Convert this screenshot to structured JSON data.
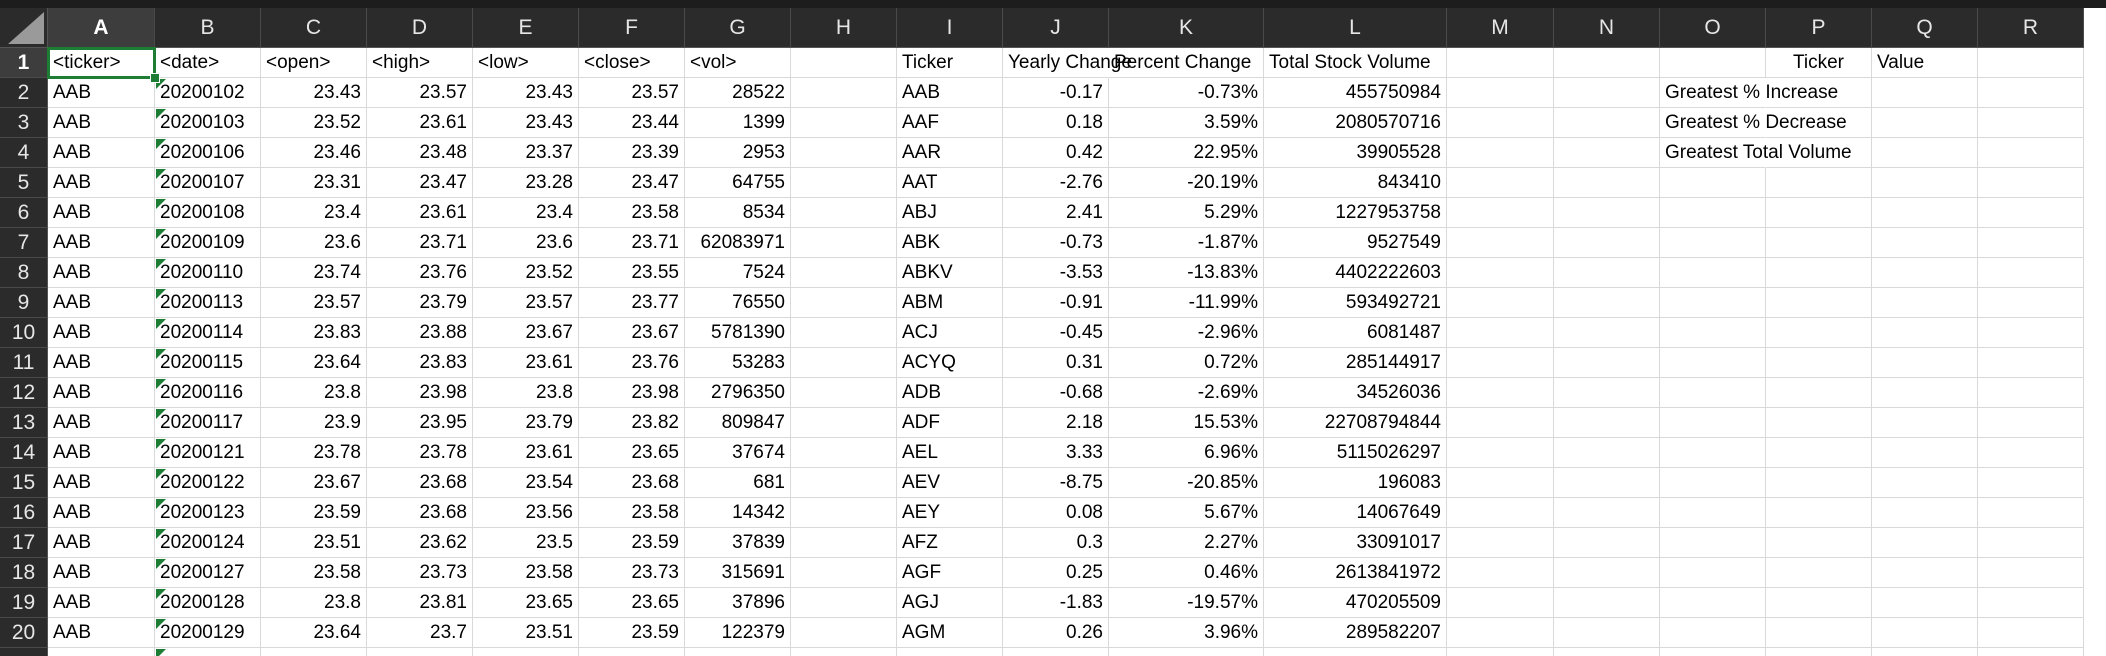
{
  "spreadsheet": {
    "columns": [
      "A",
      "B",
      "C",
      "D",
      "E",
      "F",
      "G",
      "H",
      "I",
      "J",
      "K",
      "L",
      "M",
      "N",
      "O",
      "P",
      "Q",
      "R"
    ],
    "selected_column": "A",
    "selected_row": "1",
    "rows": [
      {
        "n": "1",
        "A": "<ticker>",
        "B": "<date>",
        "C": "<open>",
        "D": "<high>",
        "E": "<low>",
        "F": "<close>",
        "G": "<vol>",
        "H": "",
        "I": "Ticker",
        "J": "Yearly Change",
        "K": "Percent Change",
        "L": "Total Stock Volume",
        "M": "",
        "N": "",
        "O": "",
        "P": "Ticker",
        "Q": "Value",
        "R": ""
      },
      {
        "n": "2",
        "A": "AAB",
        "B": "20200102",
        "C": "23.43",
        "D": "23.57",
        "E": "23.43",
        "F": "23.57",
        "G": "28522",
        "H": "",
        "I": "AAB",
        "J": "-0.17",
        "K": "-0.73%",
        "L": "455750984",
        "M": "",
        "N": "",
        "O": "Greatest % Increase",
        "P": "",
        "Q": "",
        "R": ""
      },
      {
        "n": "3",
        "A": "AAB",
        "B": "20200103",
        "C": "23.52",
        "D": "23.61",
        "E": "23.43",
        "F": "23.44",
        "G": "1399",
        "H": "",
        "I": "AAF",
        "J": "0.18",
        "K": "3.59%",
        "L": "2080570716",
        "M": "",
        "N": "",
        "O": "Greatest % Decrease",
        "P": "",
        "Q": "",
        "R": ""
      },
      {
        "n": "4",
        "A": "AAB",
        "B": "20200106",
        "C": "23.46",
        "D": "23.48",
        "E": "23.37",
        "F": "23.39",
        "G": "2953",
        "H": "",
        "I": "AAR",
        "J": "0.42",
        "K": "22.95%",
        "L": "39905528",
        "M": "",
        "N": "",
        "O": "Greatest Total Volume",
        "P": "",
        "Q": "",
        "R": ""
      },
      {
        "n": "5",
        "A": "AAB",
        "B": "20200107",
        "C": "23.31",
        "D": "23.47",
        "E": "23.28",
        "F": "23.47",
        "G": "64755",
        "H": "",
        "I": "AAT",
        "J": "-2.76",
        "K": "-20.19%",
        "L": "843410",
        "M": "",
        "N": "",
        "O": "",
        "P": "",
        "Q": "",
        "R": ""
      },
      {
        "n": "6",
        "A": "AAB",
        "B": "20200108",
        "C": "23.4",
        "D": "23.61",
        "E": "23.4",
        "F": "23.58",
        "G": "8534",
        "H": "",
        "I": "ABJ",
        "J": "2.41",
        "K": "5.29%",
        "L": "1227953758",
        "M": "",
        "N": "",
        "O": "",
        "P": "",
        "Q": "",
        "R": ""
      },
      {
        "n": "7",
        "A": "AAB",
        "B": "20200109",
        "C": "23.6",
        "D": "23.71",
        "E": "23.6",
        "F": "23.71",
        "G": "62083971",
        "H": "",
        "I": "ABK",
        "J": "-0.73",
        "K": "-1.87%",
        "L": "9527549",
        "M": "",
        "N": "",
        "O": "",
        "P": "",
        "Q": "",
        "R": ""
      },
      {
        "n": "8",
        "A": "AAB",
        "B": "20200110",
        "C": "23.74",
        "D": "23.76",
        "E": "23.52",
        "F": "23.55",
        "G": "7524",
        "H": "",
        "I": "ABKV",
        "J": "-3.53",
        "K": "-13.83%",
        "L": "4402222603",
        "M": "",
        "N": "",
        "O": "",
        "P": "",
        "Q": "",
        "R": ""
      },
      {
        "n": "9",
        "A": "AAB",
        "B": "20200113",
        "C": "23.57",
        "D": "23.79",
        "E": "23.57",
        "F": "23.77",
        "G": "76550",
        "H": "",
        "I": "ABM",
        "J": "-0.91",
        "K": "-11.99%",
        "L": "593492721",
        "M": "",
        "N": "",
        "O": "",
        "P": "",
        "Q": "",
        "R": ""
      },
      {
        "n": "10",
        "A": "AAB",
        "B": "20200114",
        "C": "23.83",
        "D": "23.88",
        "E": "23.67",
        "F": "23.67",
        "G": "5781390",
        "H": "",
        "I": "ACJ",
        "J": "-0.45",
        "K": "-2.96%",
        "L": "6081487",
        "M": "",
        "N": "",
        "O": "",
        "P": "",
        "Q": "",
        "R": ""
      },
      {
        "n": "11",
        "A": "AAB",
        "B": "20200115",
        "C": "23.64",
        "D": "23.83",
        "E": "23.61",
        "F": "23.76",
        "G": "53283",
        "H": "",
        "I": "ACYQ",
        "J": "0.31",
        "K": "0.72%",
        "L": "285144917",
        "M": "",
        "N": "",
        "O": "",
        "P": "",
        "Q": "",
        "R": ""
      },
      {
        "n": "12",
        "A": "AAB",
        "B": "20200116",
        "C": "23.8",
        "D": "23.98",
        "E": "23.8",
        "F": "23.98",
        "G": "2796350",
        "H": "",
        "I": "ADB",
        "J": "-0.68",
        "K": "-2.69%",
        "L": "34526036",
        "M": "",
        "N": "",
        "O": "",
        "P": "",
        "Q": "",
        "R": ""
      },
      {
        "n": "13",
        "A": "AAB",
        "B": "20200117",
        "C": "23.9",
        "D": "23.95",
        "E": "23.79",
        "F": "23.82",
        "G": "809847",
        "H": "",
        "I": "ADF",
        "J": "2.18",
        "K": "15.53%",
        "L": "22708794844",
        "M": "",
        "N": "",
        "O": "",
        "P": "",
        "Q": "",
        "R": ""
      },
      {
        "n": "14",
        "A": "AAB",
        "B": "20200121",
        "C": "23.78",
        "D": "23.78",
        "E": "23.61",
        "F": "23.65",
        "G": "37674",
        "H": "",
        "I": "AEL",
        "J": "3.33",
        "K": "6.96%",
        "L": "5115026297",
        "M": "",
        "N": "",
        "O": "",
        "P": "",
        "Q": "",
        "R": ""
      },
      {
        "n": "15",
        "A": "AAB",
        "B": "20200122",
        "C": "23.67",
        "D": "23.68",
        "E": "23.54",
        "F": "23.68",
        "G": "681",
        "H": "",
        "I": "AEV",
        "J": "-8.75",
        "K": "-20.85%",
        "L": "196083",
        "M": "",
        "N": "",
        "O": "",
        "P": "",
        "Q": "",
        "R": ""
      },
      {
        "n": "16",
        "A": "AAB",
        "B": "20200123",
        "C": "23.59",
        "D": "23.68",
        "E": "23.56",
        "F": "23.58",
        "G": "14342",
        "H": "",
        "I": "AEY",
        "J": "0.08",
        "K": "5.67%",
        "L": "14067649",
        "M": "",
        "N": "",
        "O": "",
        "P": "",
        "Q": "",
        "R": ""
      },
      {
        "n": "17",
        "A": "AAB",
        "B": "20200124",
        "C": "23.51",
        "D": "23.62",
        "E": "23.5",
        "F": "23.59",
        "G": "37839",
        "H": "",
        "I": "AFZ",
        "J": "0.3",
        "K": "2.27%",
        "L": "33091017",
        "M": "",
        "N": "",
        "O": "",
        "P": "",
        "Q": "",
        "R": ""
      },
      {
        "n": "18",
        "A": "AAB",
        "B": "20200127",
        "C": "23.58",
        "D": "23.73",
        "E": "23.58",
        "F": "23.73",
        "G": "315691",
        "H": "",
        "I": "AGF",
        "J": "0.25",
        "K": "0.46%",
        "L": "2613841972",
        "M": "",
        "N": "",
        "O": "",
        "P": "",
        "Q": "",
        "R": ""
      },
      {
        "n": "19",
        "A": "AAB",
        "B": "20200128",
        "C": "23.8",
        "D": "23.81",
        "E": "23.65",
        "F": "23.65",
        "G": "37896",
        "H": "",
        "I": "AGJ",
        "J": "-1.83",
        "K": "-19.57%",
        "L": "470205509",
        "M": "",
        "N": "",
        "O": "",
        "P": "",
        "Q": "",
        "R": ""
      },
      {
        "n": "20",
        "A": "AAB",
        "B": "20200129",
        "C": "23.64",
        "D": "23.7",
        "E": "23.51",
        "F": "23.59",
        "G": "122379",
        "H": "",
        "I": "AGM",
        "J": "0.26",
        "K": "3.96%",
        "L": "289582207",
        "M": "",
        "N": "",
        "O": "",
        "P": "",
        "Q": "",
        "R": ""
      }
    ]
  },
  "colors": {
    "header_bg": "#2b2b2b",
    "header_text": "#e6e6e6",
    "gridline": "#d9d9d9",
    "selection": "#1e7d34"
  }
}
